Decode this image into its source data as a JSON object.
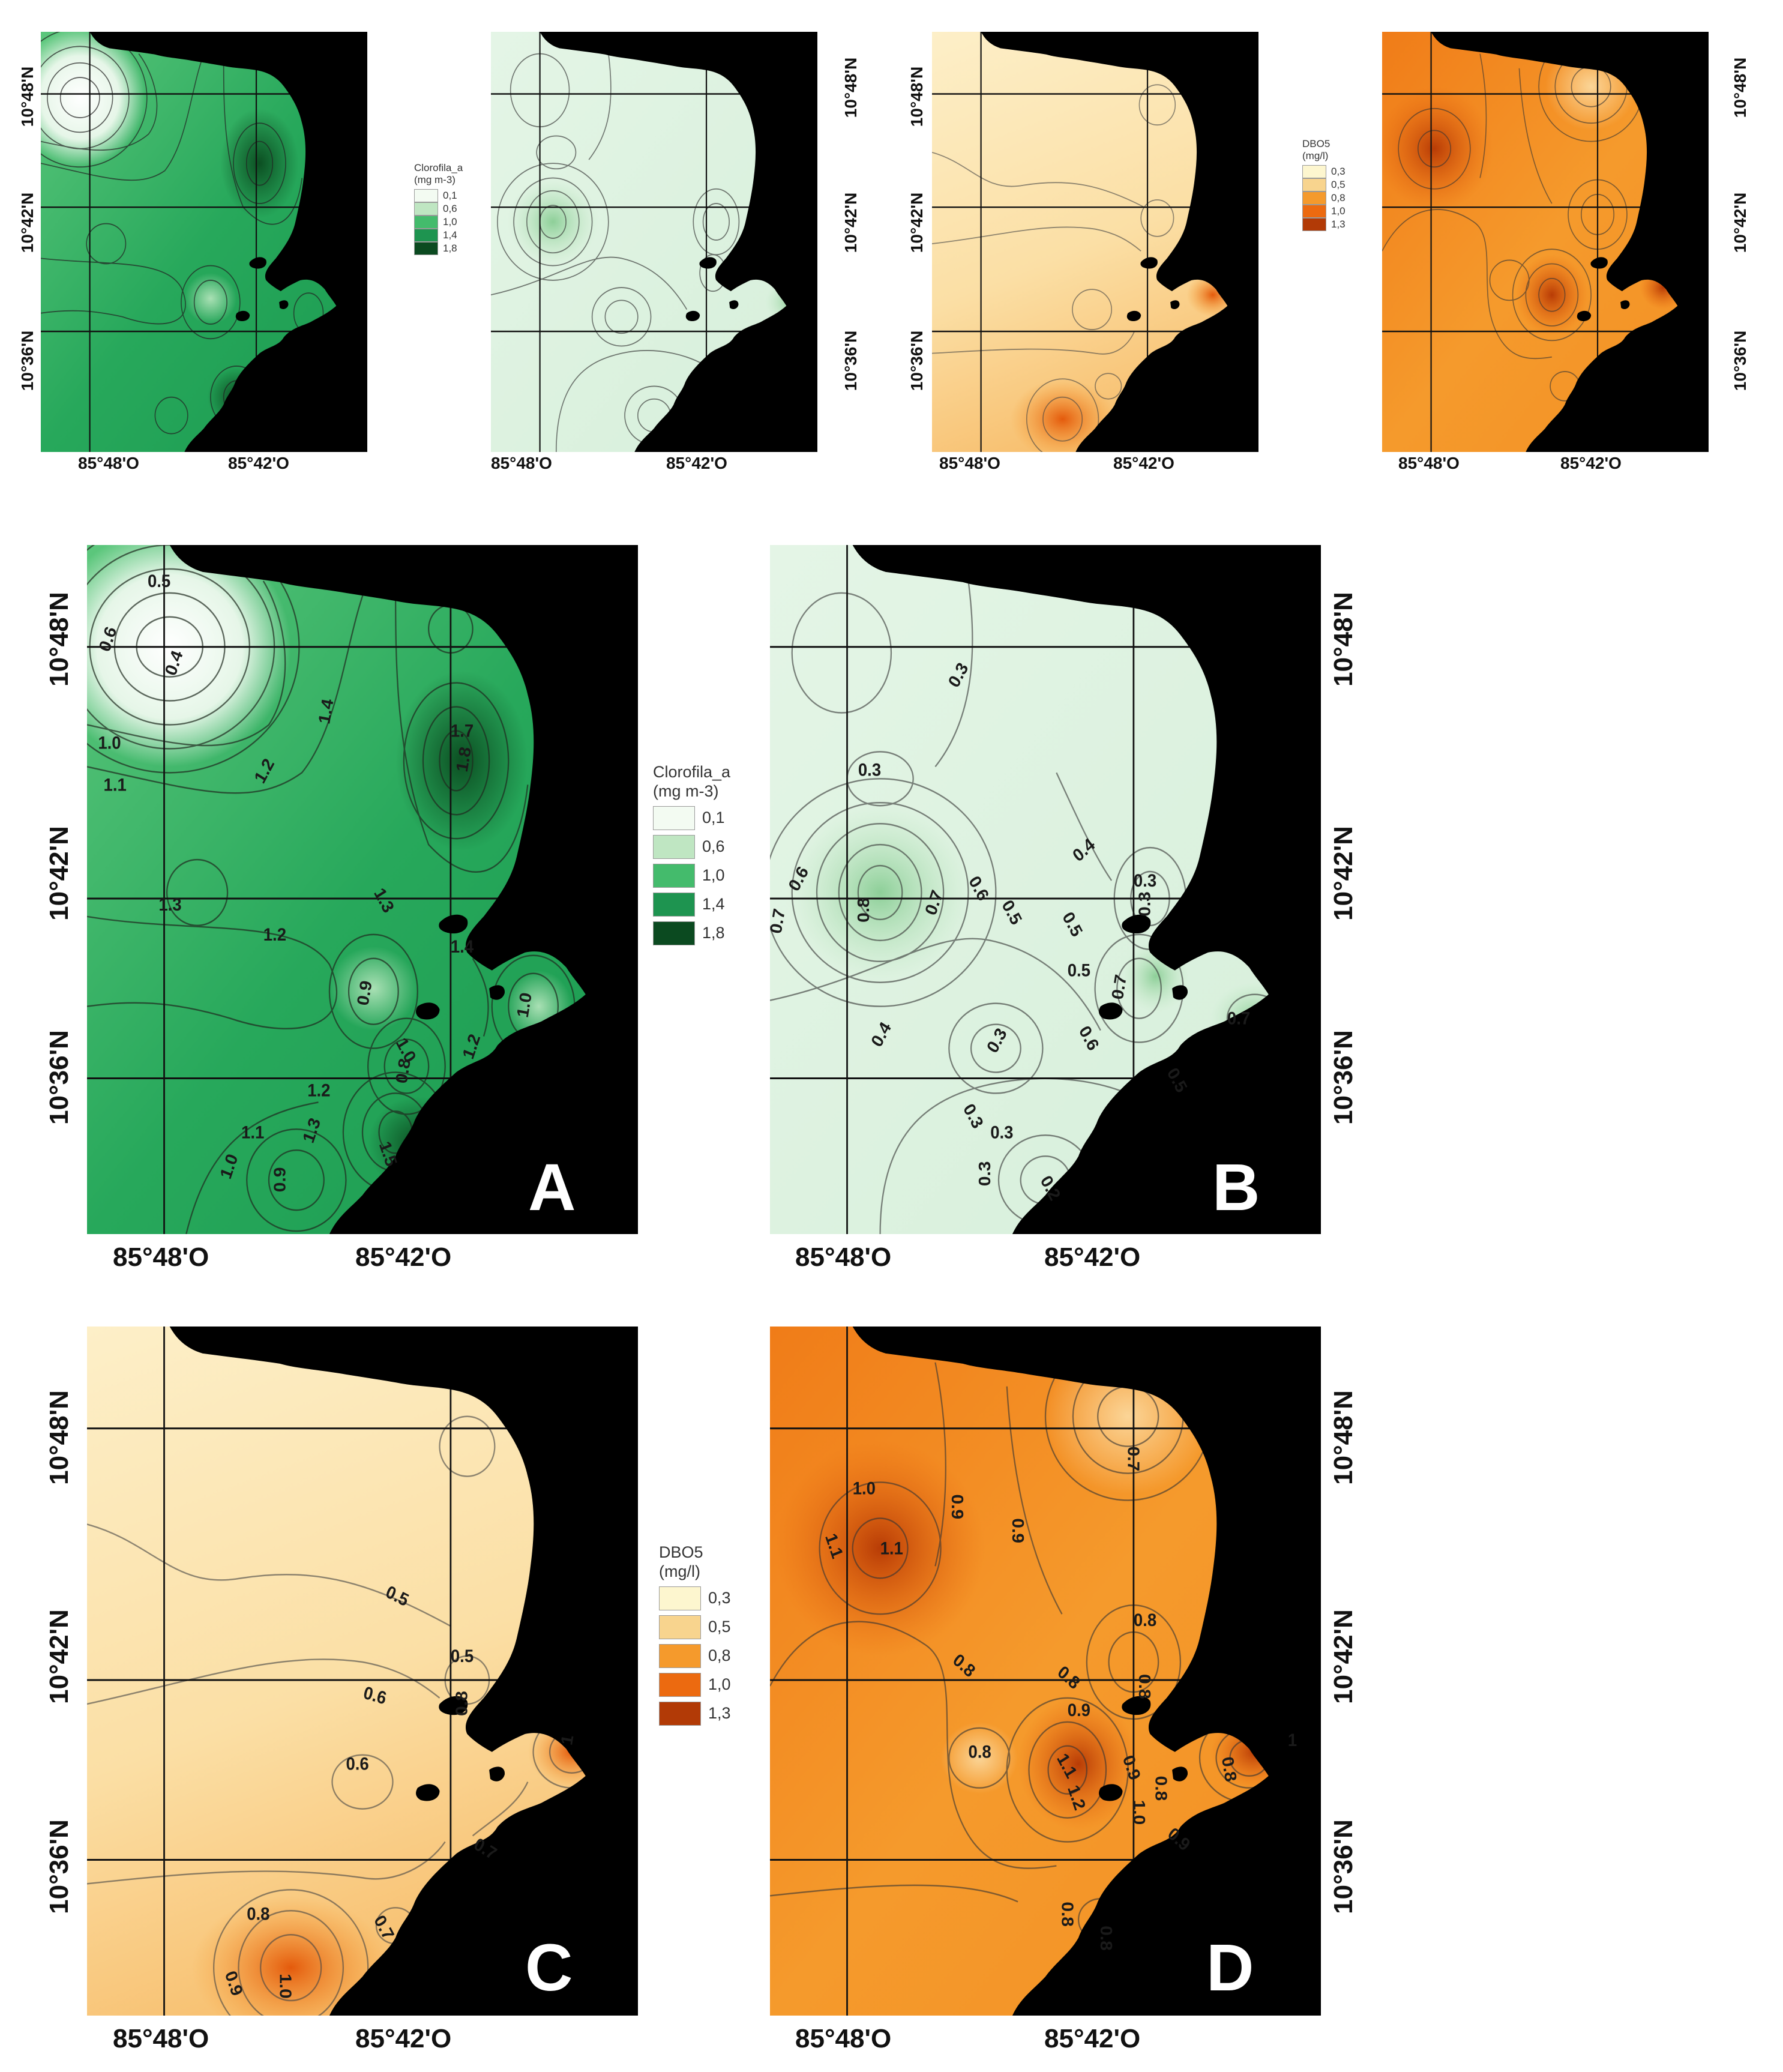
{
  "coords": {
    "lon_west": "85°48'O",
    "lon_east": "85°42'O",
    "lat_north": "10°48'N",
    "lat_mid": "10°42'N",
    "lat_south": "10°36'N"
  },
  "panel_letters": [
    "A",
    "B",
    "C",
    "D"
  ],
  "legend_chl": {
    "title": "Clorofila_a",
    "unit": "(mg m-3)",
    "items": [
      {
        "label": "0,1",
        "color": "#f3fbf2"
      },
      {
        "label": "0,6",
        "color": "#bfe6c2"
      },
      {
        "label": "1,0",
        "color": "#44bb6c"
      },
      {
        "label": "1,4",
        "color": "#1e9450"
      },
      {
        "label": "1,8",
        "color": "#0b4a20"
      }
    ]
  },
  "legend_dbo": {
    "title": "DBO5",
    "unit": "(mg/l)",
    "items": [
      {
        "label": "0,3",
        "color": "#fdf6cf"
      },
      {
        "label": "0,5",
        "color": "#f8d48e"
      },
      {
        "label": "0,8",
        "color": "#f59a2c"
      },
      {
        "label": "1,0",
        "color": "#ec6a10"
      },
      {
        "label": "1,3",
        "color": "#b23a06"
      }
    ]
  },
  "contour_labels": {
    "A": [
      "0.5",
      "0.6",
      "0.4",
      "1.0",
      "1.1",
      "1.2",
      "1.4",
      "1.7",
      "1.8",
      "1.3",
      "1.3",
      "1.2",
      "1.4",
      "0.9",
      "1.0",
      "1.0",
      "1.2",
      "0.8",
      "1.2",
      "1.1",
      "1.3",
      "1.5",
      "1.0",
      "0.9"
    ],
    "B": [
      "0.3",
      "0.3",
      "0.6",
      "0.7",
      "0.8",
      "0.7",
      "0.6",
      "0.5",
      "0.4",
      "0.5",
      "0.3",
      "0.3",
      "0.5",
      "0.7",
      "0.6",
      "0.7",
      "0.5",
      "0.4",
      "0.3",
      "0.3",
      "0.3",
      "0.2",
      "0.3"
    ],
    "C": [
      "0.5",
      "0.5",
      "0.6",
      "0.8",
      "0.6",
      "1",
      "0.7",
      "0.8",
      "0.7",
      "0.9",
      "1.0"
    ],
    "D": [
      "0.7",
      "1.0",
      "0.9",
      "0.9",
      "1.1",
      "1.1",
      "0.8",
      "0.8",
      "0.8",
      "0.8",
      "0.8",
      "0.9",
      "0.8",
      "1.1",
      "1.2",
      "0.9",
      "1.0",
      "0.8",
      "1",
      "0.9",
      "0.8",
      "0.8"
    ]
  }
}
